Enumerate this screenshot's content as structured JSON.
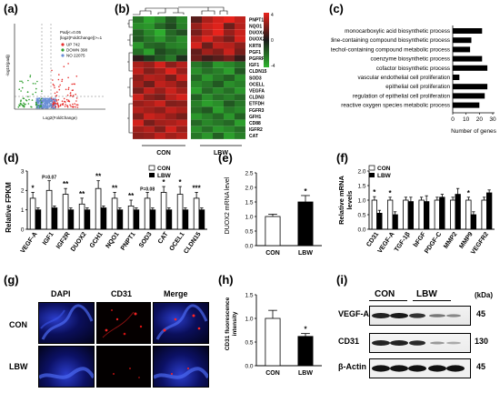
{
  "panel_labels": [
    "(a)",
    "(b)",
    "(c)",
    "(d)",
    "(e)",
    "(f)",
    "(g)",
    "(h)",
    "(i)"
  ],
  "colors": {
    "up": "#e8312f",
    "down": "#2e9e2e",
    "no": "#6b8fd6",
    "axis": "#000000",
    "heat_high": "#e8231c",
    "heat_low": "#2fb52f",
    "heat_mid": "#1a1a1a"
  },
  "chart_data": [
    {
      "id": "a",
      "type": "scatter",
      "subtype": "volcano",
      "xlabel": "Log2(FoldChange)",
      "ylabel": "-log10(padj)",
      "legend_title_1": "Padj<=0.05",
      "legend_title_2": "|log2(FoldChange)|>=1",
      "legend_placement": "top-right",
      "series": [
        {
          "name": "UP 742",
          "color": "#e8312f"
        },
        {
          "name": "DOWN 398",
          "color": "#2e9e2e"
        },
        {
          "name": "NO 22075",
          "color": "#6b8fd6"
        }
      ]
    },
    {
      "id": "b",
      "type": "heatmap",
      "columns_groups": [
        "CON",
        "LBW"
      ],
      "rows": [
        "PNPT1",
        "NQO1",
        "DUOXA2",
        "DUOX2",
        "KRT8",
        "PGF1",
        "PGFRP1",
        "IGF1",
        "CLDN15",
        "SOD3",
        "OCELL",
        "VEGFA",
        "CLDN3",
        "ETFDH",
        "FGFR3",
        "GFH1",
        "CD88",
        "IGFR2",
        "CAT"
      ],
      "colorbar_ticks": [
        "4",
        "0",
        "-4"
      ],
      "cells": [
        [
          -1.2,
          -1.8,
          -1.5,
          -0.8,
          -1.4,
          0.6,
          1.4,
          1.8,
          2.1,
          1.6
        ],
        [
          -1.5,
          -1.6,
          -1.0,
          -0.6,
          -1.3,
          1.2,
          1.7,
          1.9,
          0.8,
          1.5
        ],
        [
          -0.9,
          -1.4,
          -1.9,
          -1.0,
          -0.7,
          0.9,
          1.5,
          2.2,
          1.2,
          1.7
        ],
        [
          -0.8,
          -1.2,
          -1.6,
          -1.1,
          -1.5,
          1.4,
          1.9,
          1.3,
          0.9,
          1.8
        ],
        [
          -1.6,
          -1.0,
          -0.9,
          -1.3,
          -1.4,
          1.8,
          0.8,
          1.6,
          1.5,
          1.1
        ],
        [
          -1.1,
          -1.7,
          -0.6,
          -0.9,
          -1.1,
          0.7,
          1.3,
          1.0,
          1.7,
          0.9
        ],
        [
          0.2,
          -0.4,
          -0.8,
          -1.2,
          -0.3,
          0.8,
          0.4,
          0.6,
          0.9,
          0.3
        ],
        [
          1.4,
          1.2,
          1.8,
          1.1,
          1.5,
          -1.2,
          -0.9,
          -1.6,
          -1.4,
          -1.1
        ],
        [
          1.6,
          1.0,
          1.3,
          1.9,
          1.2,
          -1.5,
          -1.1,
          -1.3,
          -1.7,
          -0.8
        ],
        [
          1.1,
          1.5,
          1.4,
          0.9,
          1.7,
          -1.0,
          -1.6,
          -1.2,
          -0.9,
          -1.5
        ],
        [
          1.3,
          0.8,
          1.6,
          1.4,
          1.0,
          -1.4,
          -1.2,
          -0.8,
          -1.5,
          -1.3
        ],
        [
          0.9,
          1.6,
          1.2,
          1.7,
          1.3,
          -1.7,
          -1.0,
          -1.4,
          -1.1,
          -1.6
        ],
        [
          1.7,
          1.1,
          0.9,
          1.5,
          1.8,
          -0.9,
          -1.5,
          -1.1,
          -1.3,
          -1.0
        ],
        [
          1.2,
          1.4,
          1.7,
          1.0,
          1.1,
          -1.3,
          -1.7,
          -1.5,
          -0.8,
          -1.2
        ],
        [
          1.5,
          1.3,
          1.1,
          1.6,
          1.4,
          -1.1,
          -0.8,
          -1.7,
          -1.2,
          -1.4
        ],
        [
          1.0,
          1.7,
          1.5,
          1.2,
          0.9,
          -1.6,
          -1.3,
          -1.0,
          -1.6,
          -0.9
        ],
        [
          1.8,
          0.9,
          1.3,
          1.4,
          1.6,
          -1.0,
          -1.4,
          -1.2,
          -1.0,
          -1.7
        ],
        [
          1.3,
          1.5,
          1.0,
          1.8,
          1.2,
          -1.5,
          -1.1,
          -1.6,
          -1.4,
          -1.1
        ],
        [
          1.1,
          1.2,
          1.6,
          1.3,
          1.5,
          -1.2,
          -1.6,
          -0.9,
          -1.7,
          -1.3
        ]
      ]
    },
    {
      "id": "c",
      "type": "bar",
      "orientation": "horizontal",
      "categories": [
        "monocarboxylic acid biosynthetic process",
        "pyridine-containing compound biosynthetic process",
        "catechol-containing compound metabolic process",
        "coenzyme biosynthetic process",
        "cofactor biosynthetic process",
        "vascular endothelial cell proliferation",
        "epithelial cell proliferation",
        "regulation of epithelial cell proliferation",
        "reactive oxygen species metabolic process"
      ],
      "values": [
        22,
        14,
        13,
        22,
        26,
        5,
        26,
        24,
        20
      ],
      "xlabel": "Number of genes",
      "xticks": [
        "0",
        "10",
        "20",
        "30"
      ],
      "xlim": [
        0,
        30
      ],
      "color": "#000000"
    },
    {
      "id": "d",
      "type": "bar",
      "ylabel": "Relative FPKM",
      "ylim": [
        0,
        3
      ],
      "yticks": [
        "0",
        "1",
        "2",
        "3"
      ],
      "legend_placement": "top-right",
      "categories": [
        "VEGF-A",
        "IGF1",
        "IGF2R",
        "DUOX2",
        "GCH1",
        "NQO1",
        "PNPT1",
        "SOD3",
        "CAT",
        "OCEL1",
        "CLDN15"
      ],
      "series": [
        {
          "name": "CON",
          "values": [
            1.6,
            2.0,
            1.8,
            1.3,
            2.1,
            1.6,
            1.2,
            1.6,
            1.9,
            1.8,
            1.6
          ],
          "errors": [
            0.3,
            0.5,
            0.3,
            0.3,
            0.4,
            0.3,
            0.3,
            0.3,
            0.3,
            0.4,
            0.3
          ]
        },
        {
          "name": "LBW",
          "values": [
            1.0,
            1.1,
            1.0,
            1.0,
            1.1,
            1.0,
            1.0,
            1.0,
            1.0,
            1.0,
            1.0
          ],
          "errors": [
            0.1,
            0.1,
            0.1,
            0.1,
            0.1,
            0.1,
            0.1,
            0.1,
            0.1,
            0.1,
            0.1
          ]
        }
      ],
      "annotations": [
        "*",
        "P=0.07",
        "**",
        "**",
        "**",
        "**",
        "**",
        "P=0.08",
        "*",
        "*",
        "***"
      ]
    },
    {
      "id": "e",
      "type": "bar",
      "ylabel": "DUOX2 mRNA level",
      "ylim": [
        0,
        2.5
      ],
      "yticks": [
        "0.0",
        "0.5",
        "1.0",
        "1.5",
        "2.0",
        "2.5"
      ],
      "categories": [
        "CON",
        "LBW"
      ],
      "values": [
        1.0,
        1.5
      ],
      "errors": [
        0.08,
        0.22
      ],
      "fills": [
        "#ffffff",
        "#000000"
      ],
      "annotations": [
        "",
        "*"
      ]
    },
    {
      "id": "f",
      "type": "bar",
      "ylabel": "Relative mRNA levels",
      "ylim": [
        0,
        2.0
      ],
      "yticks": [
        "0.0",
        "0.5",
        "1.0",
        "1.5",
        "2.0"
      ],
      "legend_placement": "top-left",
      "categories": [
        "CD31",
        "VEGF-A",
        "TGF-1β",
        "bFGF",
        "PDGF-C",
        "MMP2",
        "MMP9",
        "VEGFR2"
      ],
      "series": [
        {
          "name": "CON",
          "values": [
            1.0,
            1.0,
            1.0,
            1.0,
            1.0,
            1.0,
            1.0,
            1.0
          ],
          "errors": [
            0.12,
            0.1,
            0.1,
            0.1,
            0.1,
            0.1,
            0.1,
            0.1
          ]
        },
        {
          "name": "LBW",
          "values": [
            0.55,
            0.5,
            0.95,
            0.95,
            1.1,
            1.2,
            0.5,
            1.25
          ],
          "errors": [
            0.1,
            0.1,
            0.15,
            0.2,
            0.1,
            0.2,
            0.1,
            0.1
          ]
        }
      ],
      "annotations": [
        "*",
        "*",
        "",
        "",
        "",
        "",
        "*",
        ""
      ]
    },
    {
      "id": "h",
      "type": "bar",
      "ylabel": "CD31 fluorescence intensity",
      "ylim": [
        0,
        1.5
      ],
      "yticks": [
        "0.0",
        "0.5",
        "1.0",
        "1.5"
      ],
      "categories": [
        "CON",
        "LBW"
      ],
      "values": [
        1.0,
        0.62
      ],
      "errors": [
        0.17,
        0.06
      ],
      "fills": [
        "#ffffff",
        "#000000"
      ],
      "annotations": [
        "",
        "*"
      ]
    }
  ],
  "panel_g": {
    "col_labels": [
      "DAPI",
      "CD31",
      "Merge"
    ],
    "row_labels": [
      "CON",
      "LBW"
    ]
  },
  "panel_i": {
    "group_labels": [
      "CON",
      "LBW"
    ],
    "unit": "(kDa)",
    "bands": [
      {
        "name": "VEGF-A",
        "kda": "45"
      },
      {
        "name": "CD31",
        "kda": "130"
      },
      {
        "name": "β-Actin",
        "kda": "45"
      }
    ]
  }
}
